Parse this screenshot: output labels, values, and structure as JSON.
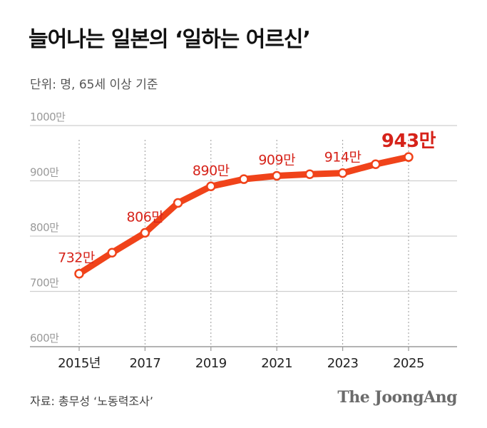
{
  "title": "늘어나는 일본의 ‘일하는 어르신’",
  "unit_note": "단위: 명, 65세 이상 기준",
  "source": "자료: 총무성 ‘노동력조사’",
  "logo": "The JoongAng",
  "colors": {
    "line": "#f0431a",
    "label": "#d6231a",
    "grid": "#cfcfcf",
    "axis_text": "#9a9a9a"
  },
  "chart_data": {
    "type": "line",
    "x": [
      2015,
      2016,
      2017,
      2018,
      2019,
      2020,
      2021,
      2022,
      2023,
      2024,
      2025
    ],
    "series": [
      {
        "values": [
          732,
          770,
          806,
          860,
          890,
          903,
          909,
          912,
          914,
          930,
          943
        ]
      }
    ],
    "ylim": [
      600,
      1000
    ],
    "yticks": [
      600,
      700,
      800,
      900,
      1000
    ],
    "ytick_labels": [
      "600만",
      "700만",
      "800만",
      "900만",
      "1000만"
    ],
    "xtick_values": [
      2015,
      2017,
      2019,
      2021,
      2023,
      2025
    ],
    "xtick_labels": [
      "2015년",
      "2017",
      "2019",
      "2021",
      "2023",
      "2025"
    ],
    "annotations": [
      {
        "x": 2015,
        "label": "732만"
      },
      {
        "x": 2017,
        "label": "806만"
      },
      {
        "x": 2019,
        "label": "890만"
      },
      {
        "x": 2021,
        "label": "909만"
      },
      {
        "x": 2023,
        "label": "914만"
      },
      {
        "x": 2025,
        "label": "943만",
        "emphasis": true
      }
    ],
    "grid": true
  }
}
